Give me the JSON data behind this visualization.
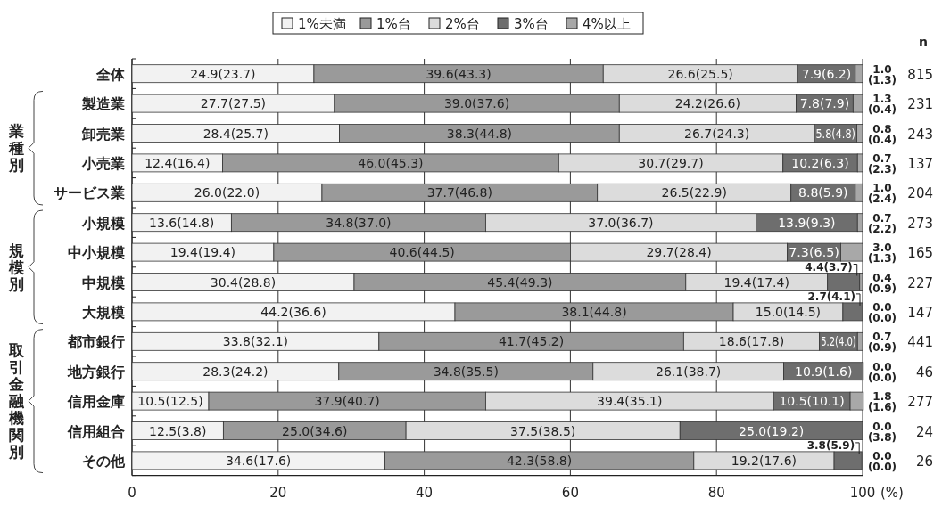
{
  "chart_data": {
    "type": "bar",
    "orientation": "horizontal",
    "stacked": true,
    "categories": [
      "全体",
      "製造業",
      "卸売業",
      "小売業",
      "サービス業",
      "小規模",
      "中小規模",
      "中規模",
      "大規模",
      "都市銀行",
      "地方銀行",
      "信用金庫",
      "信用組合",
      "その他"
    ],
    "series": [
      {
        "name": "1%未満",
        "color": "#f2f2f2",
        "values": [
          24.9,
          27.7,
          28.4,
          12.4,
          26.0,
          13.6,
          19.4,
          30.4,
          44.2,
          33.8,
          28.3,
          10.5,
          12.5,
          34.6
        ],
        "value_labels": [
          "24.9(23.7)",
          "27.7(27.5)",
          "28.4(25.7)",
          "12.4(16.4)",
          "26.0(22.0)",
          "13.6(14.8)",
          "19.4(19.4)",
          "30.4(28.8)",
          "44.2(36.6)",
          "33.8(32.1)",
          "28.3(24.2)",
          "10.5(12.5)",
          "12.5(3.8)",
          "34.6(17.6)"
        ]
      },
      {
        "name": "1%台",
        "color": "#9a9a9a",
        "values": [
          39.6,
          39.0,
          38.3,
          46.0,
          37.7,
          34.8,
          40.6,
          45.4,
          38.1,
          41.7,
          34.8,
          37.9,
          25.0,
          42.3
        ],
        "value_labels": [
          "39.6(43.3)",
          "39.0(37.6)",
          "38.3(44.8)",
          "46.0(45.3)",
          "37.7(46.8)",
          "34.8(37.0)",
          "40.6(44.5)",
          "45.4(49.3)",
          "38.1(44.8)",
          "41.7(45.2)",
          "34.8(35.5)",
          "37.9(40.7)",
          "25.0(34.6)",
          "42.3(58.8)"
        ]
      },
      {
        "name": "2%台",
        "color": "#dcdcdc",
        "values": [
          26.6,
          24.2,
          26.7,
          30.7,
          26.5,
          37.0,
          29.7,
          19.4,
          15.0,
          18.6,
          26.1,
          39.4,
          37.5,
          19.2
        ],
        "value_labels": [
          "26.6(25.5)",
          "24.2(26.6)",
          "26.7(24.3)",
          "30.7(29.7)",
          "26.5(22.9)",
          "37.0(36.7)",
          "29.7(28.4)",
          "19.4(17.4)",
          "15.0(14.5)",
          "18.6(17.8)",
          "26.1(38.7)",
          "39.4(35.1)",
          "37.5(38.5)",
          "19.2(17.6)"
        ]
      },
      {
        "name": "3%台",
        "color": "#6e6e6e",
        "values": [
          7.9,
          7.8,
          5.8,
          10.2,
          8.8,
          13.9,
          7.3,
          4.4,
          2.7,
          5.2,
          10.9,
          10.5,
          25.0,
          3.8
        ],
        "value_labels": [
          "7.9(6.2)",
          "7.8(7.9)",
          "5.8(4.8)",
          "10.2(6.3)",
          "8.8(5.9)",
          "13.9(9.3)",
          "7.3(6.5)",
          "4.4(3.7)",
          "2.7(4.1)",
          "5.2(4.0)",
          "10.9(1.6)",
          "10.5(10.1)",
          "25.0(19.2)",
          "3.8(5.9)"
        ]
      },
      {
        "name": "4%以上",
        "color": "#a8a8a8",
        "values": [
          1.0,
          1.3,
          0.8,
          0.7,
          1.0,
          0.7,
          3.0,
          0.4,
          0.0,
          0.7,
          0.0,
          1.8,
          0.0,
          0.0
        ],
        "value_labels": [
          "1.0(1.3)",
          "1.3(0.4)",
          "0.8(0.4)",
          "0.7(2.3)",
          "1.0(2.4)",
          "0.7(2.2)",
          "3.0(1.3)",
          "0.4(0.9)",
          "0.0(0.0)",
          "0.7(0.9)",
          "0.0(0.0)",
          "1.8(1.6)",
          "0.0(3.8)",
          "0.0(0.0)"
        ]
      }
    ],
    "xlim": [
      0,
      100
    ],
    "xticks": [
      0,
      20,
      40,
      60,
      80,
      100
    ],
    "xlabel": "(%)",
    "grid": "x",
    "legend": "top",
    "annotations": [
      "業種別",
      "規模別",
      "取引金融機関別",
      "n",
      "815",
      "231",
      "243",
      "137",
      "204",
      "273",
      "165",
      "227",
      "147",
      "441",
      "46",
      "277",
      "24",
      "26"
    ]
  }
}
